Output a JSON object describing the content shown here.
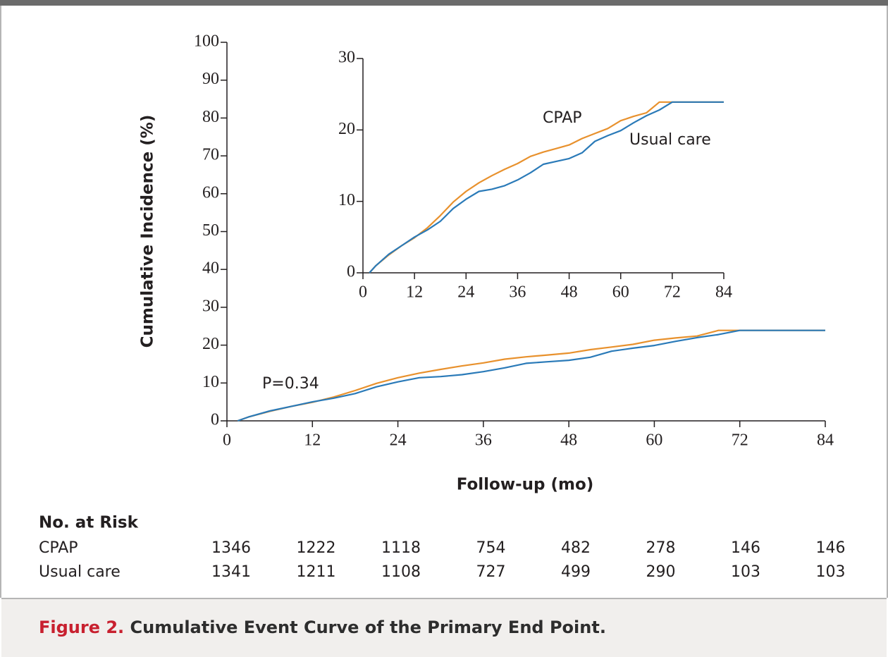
{
  "chart_data": [
    {
      "type": "line",
      "xlabel": "Follow-up (mo)",
      "ylabel": "Cumulative Incidence (%)",
      "annotation": "P=0.34",
      "x": [
        1.5,
        3,
        6,
        9,
        12,
        15,
        18,
        21,
        24,
        27,
        30,
        33,
        36,
        39,
        42,
        45,
        48,
        51,
        54,
        57,
        60,
        63,
        66,
        69,
        72,
        75,
        78,
        81,
        84
      ],
      "series": [
        {
          "color": "#e8912d",
          "values": [
            0,
            1,
            2.5,
            3.8,
            4.9,
            6.3,
            8.0,
            9.9,
            11.4,
            12.6,
            13.6,
            14.5,
            15.3,
            16.3,
            16.9,
            17.4,
            17.9,
            18.8,
            19.5,
            20.2,
            21.3,
            21.9,
            22.4,
            23.9,
            23.9,
            23.9,
            23.9,
            23.9,
            23.9
          ]
        },
        {
          "color": "#2a7ab8",
          "values": [
            0,
            1,
            2.6,
            3.8,
            5.0,
            6.0,
            7.2,
            9.0,
            10.3,
            11.4,
            11.7,
            12.2,
            13.0,
            14.0,
            15.2,
            15.6,
            16.0,
            16.8,
            18.4,
            19.2,
            19.9,
            21.0,
            22.0,
            22.8,
            23.9,
            23.9,
            23.9,
            23.9,
            23.9
          ]
        }
      ],
      "xlim": [
        0,
        84
      ],
      "xticks": [
        0,
        12,
        24,
        36,
        48,
        60,
        72,
        84
      ],
      "ylim": [
        0,
        100
      ],
      "yticks": [
        0,
        10,
        20,
        30,
        40,
        50,
        60,
        70,
        80,
        90,
        100
      ],
      "grid": false
    },
    {
      "type": "line",
      "x": [
        1.5,
        3,
        6,
        9,
        12,
        15,
        18,
        21,
        24,
        27,
        30,
        33,
        36,
        39,
        42,
        45,
        48,
        51,
        54,
        57,
        60,
        63,
        66,
        69,
        72,
        75,
        78,
        81,
        84
      ],
      "series": [
        {
          "name": "CPAP",
          "color": "#e8912d",
          "values": [
            0,
            1,
            2.5,
            3.8,
            4.9,
            6.3,
            8.0,
            9.9,
            11.4,
            12.6,
            13.6,
            14.5,
            15.3,
            16.3,
            16.9,
            17.4,
            17.9,
            18.8,
            19.5,
            20.2,
            21.3,
            21.9,
            22.4,
            23.9,
            23.9,
            23.9,
            23.9,
            23.9,
            23.9
          ]
        },
        {
          "name": "Usual care",
          "color": "#2a7ab8",
          "values": [
            0,
            1,
            2.6,
            3.8,
            5.0,
            6.0,
            7.2,
            9.0,
            10.3,
            11.4,
            11.7,
            12.2,
            13.0,
            14.0,
            15.2,
            15.6,
            16.0,
            16.8,
            18.4,
            19.2,
            19.9,
            21.0,
            22.0,
            22.8,
            23.9,
            23.9,
            23.9,
            23.9,
            23.9
          ]
        }
      ],
      "xlim": [
        0,
        84
      ],
      "xticks": [
        0,
        12,
        24,
        36,
        48,
        60,
        72,
        84
      ],
      "ylim": [
        0,
        30
      ],
      "yticks": [
        0,
        10,
        20,
        30
      ],
      "grid": false
    }
  ],
  "risk_table": {
    "title": "No. at Risk",
    "rows": [
      {
        "label": "CPAP",
        "values": [
          1346,
          1222,
          1118,
          754,
          482,
          278,
          146,
          146
        ]
      },
      {
        "label": "Usual care",
        "values": [
          1341,
          1211,
          1108,
          727,
          499,
          290,
          103,
          103
        ]
      }
    ]
  },
  "caption": {
    "label": "Figure 2.",
    "text": "Cumulative Event Curve of the Primary End Point."
  }
}
